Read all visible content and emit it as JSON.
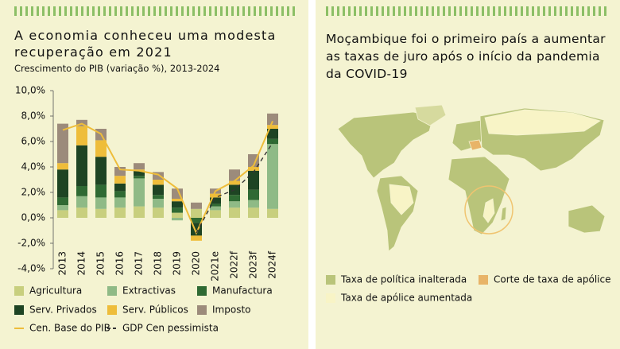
{
  "chart_data": {
    "type": "bar",
    "title": "A economia conheceu uma modesta recuperação em 2021",
    "subtitle": "Crescimento do PIB (variação %), 2013-2024",
    "categories": [
      "2013",
      "2014",
      "2015",
      "2016",
      "2017",
      "2018",
      "2019",
      "2020",
      "2021e",
      "2022f",
      "2023f",
      "2024f"
    ],
    "series": [
      {
        "name": "Agricultura",
        "type": "bar",
        "color": "#c8cf7e",
        "values": [
          0.6,
          0.8,
          0.7,
          0.8,
          0.9,
          0.8,
          0.4,
          0.7,
          0.6,
          0.8,
          0.8,
          0.7
        ]
      },
      {
        "name": "Extractivas",
        "type": "bar",
        "color": "#8fba86",
        "values": [
          0.4,
          0.9,
          0.9,
          0.8,
          2.2,
          0.7,
          -0.2,
          0,
          0.3,
          0.5,
          0.6,
          5.1
        ]
      },
      {
        "name": "Manufactura",
        "type": "bar",
        "color": "#2f6a33",
        "values": [
          0.6,
          0.8,
          1.0,
          0.5,
          0.2,
          0.3,
          0.4,
          -0.4,
          0.2,
          0.5,
          0.8,
          0.4
        ]
      },
      {
        "name": "Serv. Privados",
        "type": "bar",
        "color": "#1e4423",
        "values": [
          2.2,
          3.2,
          2.2,
          0.6,
          0.4,
          0.8,
          0.5,
          -1.0,
          0.5,
          0.8,
          1.5,
          0.8
        ]
      },
      {
        "name": "Serv. Públicos",
        "type": "bar",
        "color": "#eebd3a",
        "values": [
          0.5,
          1.5,
          1.3,
          0.6,
          0.1,
          0.4,
          0.2,
          -0.4,
          0.3,
          0.3,
          0.3,
          0.3
        ]
      },
      {
        "name": "Imposto",
        "type": "bar",
        "color": "#9c8b7b",
        "values": [
          3.1,
          0.5,
          0.9,
          0.7,
          0.5,
          0.6,
          0.8,
          0.5,
          0.4,
          0.9,
          1.0,
          0.9
        ]
      },
      {
        "name": "Cen. Base do PIB",
        "type": "line",
        "color": "#eebd3a",
        "values": [
          6.9,
          7.4,
          6.6,
          3.8,
          3.7,
          3.4,
          2.3,
          -1.2,
          2.1,
          2.9,
          4.1,
          7.6
        ]
      },
      {
        "name": "GDP Cen pessimista",
        "type": "line",
        "dash": true,
        "color": "#333333",
        "values": [
          null,
          null,
          null,
          null,
          null,
          null,
          null,
          -1.2,
          1.6,
          2.2,
          3.6,
          5.9
        ]
      }
    ],
    "ylim": [
      -4,
      10
    ],
    "yticks": [
      {
        "value": -4,
        "label": "-4,0%"
      },
      {
        "value": -2,
        "label": "-2,0%"
      },
      {
        "value": 0,
        "label": "0,0%"
      },
      {
        "value": 2,
        "label": "2,0%"
      },
      {
        "value": 4,
        "label": "4,0%"
      },
      {
        "value": 6,
        "label": "6,0%"
      },
      {
        "value": 8,
        "label": "8,0%"
      },
      {
        "value": 10,
        "label": "10,0%"
      }
    ]
  },
  "map": {
    "title": "Moçambique foi o primeiro país a aumentar as taxas de juro após o início da pandemia da COVID-19",
    "legend": [
      {
        "label": "Taxa de política inalterada",
        "color": "#b9c47a"
      },
      {
        "label": "Corte de taxa de apólice",
        "color": "#e8b468"
      },
      {
        "label": "Taxa de apólice aumentada",
        "color": "#f8f4c6"
      }
    ]
  }
}
